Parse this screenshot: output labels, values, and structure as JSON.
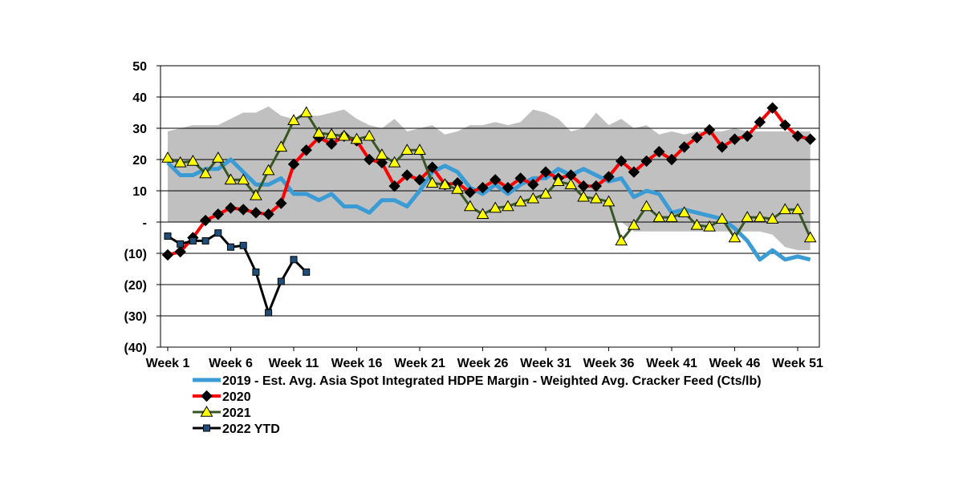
{
  "chart_data": {
    "type": "line",
    "title": "",
    "xlabel": "",
    "ylabel": "",
    "ylim": [
      -40,
      50
    ],
    "y_ticks": [
      {
        "value": 50,
        "label": "50"
      },
      {
        "value": 40,
        "label": "40"
      },
      {
        "value": 30,
        "label": "30"
      },
      {
        "value": 20,
        "label": "20"
      },
      {
        "value": 10,
        "label": "10"
      },
      {
        "value": 0,
        "label": "-"
      },
      {
        "value": -10,
        "label": "(10)"
      },
      {
        "value": -20,
        "label": "(20)"
      },
      {
        "value": -30,
        "label": "(30)"
      },
      {
        "value": -40,
        "label": "(40)"
      }
    ],
    "x_ticks": [
      {
        "week": 1,
        "label": "Week 1"
      },
      {
        "week": 6,
        "label": "Week 6"
      },
      {
        "week": 11,
        "label": "Week 11"
      },
      {
        "week": 16,
        "label": "Week 16"
      },
      {
        "week": 21,
        "label": "Week 21"
      },
      {
        "week": 26,
        "label": "Week 26"
      },
      {
        "week": 31,
        "label": "Week 31"
      },
      {
        "week": 36,
        "label": "Week 36"
      },
      {
        "week": 41,
        "label": "Week 41"
      },
      {
        "week": 46,
        "label": "Week 46"
      },
      {
        "week": 51,
        "label": "Week 51"
      }
    ],
    "band": {
      "name": "historical range",
      "color": "#c0c0c0",
      "upper": [
        29,
        30,
        31,
        31,
        31,
        33,
        35,
        35,
        37,
        34,
        33,
        34,
        34,
        35,
        36,
        33,
        31,
        30,
        33,
        29,
        30,
        31,
        28,
        29,
        31,
        31,
        32,
        31,
        32,
        36,
        35,
        33,
        29,
        30,
        35,
        31,
        33,
        30,
        31,
        28,
        29,
        28,
        29,
        29,
        29,
        30,
        29,
        29,
        29,
        29,
        29,
        29
      ],
      "lower": [
        0,
        0,
        0,
        0,
        0,
        0,
        0,
        0,
        0,
        0,
        0,
        0,
        0,
        0,
        0,
        0,
        0,
        0,
        0,
        0,
        0,
        0,
        0,
        0,
        0,
        0,
        0,
        0,
        0,
        0,
        0,
        0,
        0,
        0,
        0,
        0,
        0,
        -3,
        -3,
        -3,
        -3,
        -3,
        -3,
        -3,
        -3,
        -3,
        -3,
        -3,
        -4,
        -8,
        -9,
        -9
      ]
    },
    "series": [
      {
        "name": "2019 - Est. Avg. Asia Spot Integrated HDPE Margin - Weighted Avg. Cracker Feed (Cts/lb)",
        "color": "#3a9bd5",
        "marker": "none",
        "values": [
          19,
          15,
          15,
          17,
          17,
          20,
          16,
          12,
          12,
          14,
          9,
          9,
          7,
          9,
          5,
          5,
          3,
          7,
          7,
          5,
          10,
          16,
          18,
          16,
          11,
          9,
          12,
          9,
          12,
          14,
          14,
          17,
          15,
          17,
          15,
          13,
          14,
          8,
          10,
          9,
          3,
          4,
          3,
          2,
          1,
          -2,
          -6,
          -12,
          -9,
          -12,
          -11,
          -12
        ]
      },
      {
        "name": "2020",
        "color": "#ff0000",
        "marker": "diamond",
        "values": [
          -10.5,
          -9.5,
          -5,
          0.5,
          2.5,
          4.5,
          4,
          3,
          2.5,
          6,
          18.5,
          23,
          27,
          25,
          27.5,
          26,
          20,
          19,
          11.5,
          15,
          13.5,
          17.5,
          12,
          12.5,
          9.5,
          11,
          13.5,
          11,
          14,
          12,
          16,
          14,
          15,
          11.5,
          11.5,
          14.5,
          19.5,
          16,
          19.5,
          22.5,
          20,
          24,
          27,
          29.5,
          24,
          26.5,
          27.5,
          32,
          36.5,
          31,
          27.5,
          26.5
        ]
      },
      {
        "name": "2021",
        "color": "#375623",
        "marker": "triangle",
        "values": [
          20.5,
          19,
          19.5,
          15.5,
          20.5,
          13.5,
          13.5,
          8.5,
          16.5,
          24,
          32.5,
          35,
          28.5,
          28,
          27.5,
          26.5,
          27.5,
          21.5,
          19,
          23,
          23,
          12.5,
          12,
          10.5,
          5,
          2.5,
          4.5,
          5,
          6.5,
          7.5,
          9,
          13,
          12,
          8,
          7.5,
          6.5,
          -6,
          -1,
          5,
          1.5,
          1.5,
          3,
          -1,
          -1.5,
          1,
          -5,
          1.5,
          1.5,
          1,
          4,
          4,
          -5
        ]
      },
      {
        "name": "2022 YTD",
        "color": "#000000",
        "marker": "square",
        "values": [
          -4.5,
          -7,
          -6,
          -6,
          -3.5,
          -8,
          -7.5,
          -16,
          -29,
          -19,
          -12,
          -16
        ]
      }
    ]
  }
}
